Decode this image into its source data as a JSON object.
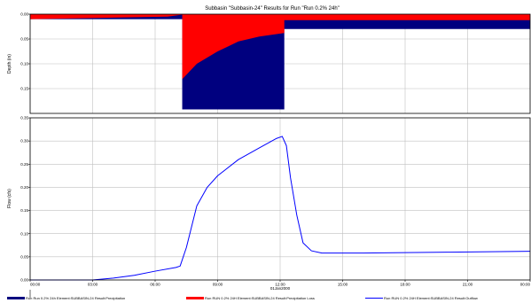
{
  "title": "Subbasin \"Subbasin-24\" Results for Run \"Run 0.2% 24h\"",
  "colors": {
    "precipitation": "#00007f",
    "loss": "#ff0000",
    "outflow": "#0000ff",
    "grid": "#c0c0c0",
    "axis": "#000000"
  },
  "chart_data": [
    {
      "type": "bar",
      "name": "depth-panel",
      "ylabel": "Depth (in)",
      "ylim": [
        0.0,
        0.2
      ],
      "y_inverted": true,
      "yticks": [
        0.0,
        0.05,
        0.1,
        0.15
      ],
      "ytick_labels": [
        "0.00",
        "0.05",
        "0.10",
        "0.15"
      ],
      "grid": true,
      "x_hours": [
        0,
        3,
        6,
        9,
        12,
        15,
        18,
        21,
        24
      ],
      "series": [
        {
          "name": "Run Run 0.2% 24h Element:SUBBASIN-24 Result:Precipitation",
          "color": "#00007f",
          "points": [
            [
              0,
              0.01
            ],
            [
              6,
              0.01
            ],
            [
              7.3,
              0.01
            ],
            [
              7.3,
              0.192
            ],
            [
              12.2,
              0.192
            ],
            [
              12.2,
              0.03
            ],
            [
              24,
              0.03
            ]
          ]
        },
        {
          "name": "Run RUN 0.2% 24H Element:SUBBASIN-24 Result:Precipitation Loss",
          "color": "#ff0000",
          "points": [
            [
              0,
              0.01
            ],
            [
              6.6,
              0.005
            ],
            [
              7.3,
              0.001
            ],
            [
              7.3,
              0.131
            ],
            [
              8,
              0.1
            ],
            [
              9,
              0.075
            ],
            [
              10,
              0.055
            ],
            [
              11,
              0.045
            ],
            [
              12.2,
              0.038
            ],
            [
              12.2,
              0.012
            ],
            [
              24,
              0.012
            ]
          ]
        }
      ]
    },
    {
      "type": "line",
      "name": "flow-panel",
      "ylabel": "Flow (cfs)",
      "xlabel": "01Jan2000",
      "ylim": [
        0.0,
        0.35
      ],
      "yticks": [
        0.0,
        0.05,
        0.1,
        0.15,
        0.2,
        0.25,
        0.3,
        0.35
      ],
      "ytick_labels": [
        "0.00",
        "0.05",
        "0.10",
        "0.15",
        "0.20",
        "0.25",
        "0.30",
        "0.35"
      ],
      "xticks": [
        0,
        3,
        6,
        9,
        12,
        15,
        18,
        21,
        24
      ],
      "xtick_labels": [
        "00:00",
        "03:00",
        "06:00",
        "09:00",
        "12:00",
        "15:00",
        "18:00",
        "21:00",
        "00:00"
      ],
      "grid": true,
      "series": [
        {
          "name": "Run RUN 0.2% 24H Element:SUBBASIN-24 Result:Outflow",
          "color": "#0000ff",
          "points": [
            [
              0,
              0
            ],
            [
              3,
              0
            ],
            [
              4,
              0.004
            ],
            [
              5,
              0.01
            ],
            [
              6,
              0.019
            ],
            [
              7,
              0.027
            ],
            [
              7.2,
              0.03
            ],
            [
              7.5,
              0.07
            ],
            [
              8,
              0.16
            ],
            [
              8.5,
              0.2
            ],
            [
              9,
              0.225
            ],
            [
              10,
              0.26
            ],
            [
              11,
              0.285
            ],
            [
              11.8,
              0.305
            ],
            [
              12.1,
              0.31
            ],
            [
              12.3,
              0.29
            ],
            [
              12.5,
              0.22
            ],
            [
              12.8,
              0.14
            ],
            [
              13.1,
              0.08
            ],
            [
              13.5,
              0.063
            ],
            [
              14,
              0.058
            ],
            [
              16,
              0.058
            ],
            [
              20,
              0.06
            ],
            [
              24,
              0.062
            ]
          ]
        }
      ]
    }
  ],
  "legend": [
    {
      "label": "Run Run 0.2% 24h Element:SUBBASIN-24 Result:Precipitation",
      "color": "#00007f",
      "style": "bar"
    },
    {
      "label": "Run RUN 0.2% 24H Element:SUBBASIN-24 Result:Precipitation Loss",
      "color": "#ff0000",
      "style": "bar"
    },
    {
      "label": "Run RUN 0.2% 24H Element:SUBBASIN-24 Result:Outflow",
      "color": "#0000ff",
      "style": "line"
    }
  ]
}
